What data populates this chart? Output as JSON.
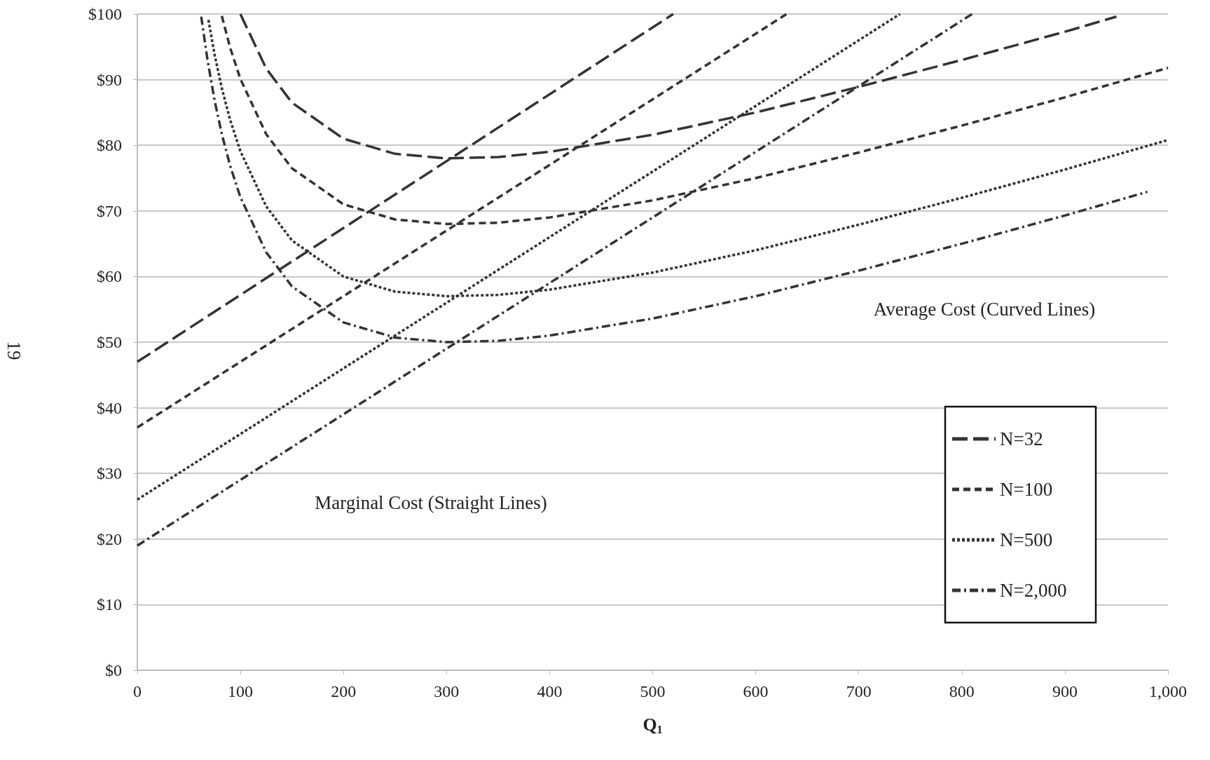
{
  "chart_data": {
    "type": "line",
    "xlabel": "Q$_{1}$",
    "xlim": [
      0,
      1000
    ],
    "xticks": [
      0,
      100,
      200,
      300,
      400,
      500,
      600,
      700,
      800,
      900,
      {
        "value": 1000,
        "label": "1,000"
      }
    ],
    "ylim": [
      0,
      100
    ],
    "yticks": [
      {
        "value": 0,
        "label": "$0"
      },
      {
        "value": 10,
        "label": "$10"
      },
      {
        "value": 20,
        "label": "$20"
      },
      {
        "value": 30,
        "label": "$30"
      },
      {
        "value": 40,
        "label": "$40"
      },
      {
        "value": 50,
        "label": "$50"
      },
      {
        "value": 60,
        "label": "$60"
      },
      {
        "value": 70,
        "label": "$70"
      },
      {
        "value": 80,
        "label": "$80"
      },
      {
        "value": 90,
        "label": "$90"
      },
      {
        "value": 100,
        "label": "$100"
      }
    ],
    "grid": "y",
    "legend": "bottom right",
    "marker": "none",
    "series": [
      {
        "name": "N=32",
        "color": "#333333",
        "line_style": "longdash",
        "x": [
          0,
          520
        ],
        "values": [
          47,
          100
        ]
      },
      {
        "name": "N=100",
        "color": "#333333",
        "line_style": "dashed",
        "x": [
          0,
          630
        ],
        "values": [
          37,
          100
        ]
      },
      {
        "name": "N=500",
        "color": "#333333",
        "line_style": "dotted",
        "x": [
          0,
          740
        ],
        "values": [
          26,
          100
        ]
      },
      {
        "name": "N=2,000",
        "color": "#333333",
        "line_style": "dashdot",
        "x": [
          0,
          810
        ],
        "values": [
          19,
          100
        ]
      },
      {
        "color": "#333333",
        "line_style": "longdash",
        "x": [
          100,
          125,
          150,
          200,
          250,
          300,
          350,
          400,
          500,
          600,
          700,
          800,
          900,
          950
        ],
        "values": [
          100,
          91.7,
          86.5,
          81.0,
          78.7,
          78.0,
          78.2,
          79.0,
          81.6,
          85.0,
          88.9,
          93.0,
          97.3,
          99.6
        ]
      },
      {
        "color": "#333333",
        "line_style": "dashed",
        "x": [
          82,
          90,
          100,
          125,
          150,
          200,
          250,
          300,
          350,
          400,
          500,
          600,
          700,
          800,
          900,
          1000
        ],
        "values": [
          99.7,
          94.9,
          90.1,
          81.7,
          76.5,
          71.0,
          68.7,
          68.0,
          68.2,
          69.0,
          71.6,
          75.0,
          78.9,
          83.0,
          87.3,
          91.8
        ]
      },
      {
        "color": "#333333",
        "line_style": "dotted",
        "x": [
          69,
          75,
          82,
          90,
          100,
          125,
          150,
          200,
          250,
          300,
          350,
          400,
          500,
          600,
          700,
          800,
          900,
          1000
        ],
        "values": [
          99.1,
          93.8,
          88.7,
          83.9,
          79.1,
          70.7,
          65.5,
          60.0,
          57.7,
          57.0,
          57.2,
          58.0,
          60.6,
          64.0,
          67.9,
          72.0,
          76.3,
          80.8
        ]
      },
      {
        "color": "#333333",
        "line_style": "dashdot",
        "x": [
          62,
          68,
          75,
          82,
          90,
          100,
          125,
          150,
          200,
          250,
          300,
          350,
          400,
          500,
          600,
          700,
          800,
          900,
          980
        ],
        "values": [
          99.6,
          93.1,
          86.8,
          81.7,
          76.9,
          72.1,
          63.7,
          58.5,
          53.0,
          50.7,
          50.0,
          50.2,
          51.0,
          53.6,
          57.0,
          60.9,
          65.0,
          69.3,
          72.9
        ]
      }
    ],
    "annotations": [
      "Average Cost (Curved Lines)",
      "Marginal Cost (Straight Lines)",
      "19"
    ]
  }
}
